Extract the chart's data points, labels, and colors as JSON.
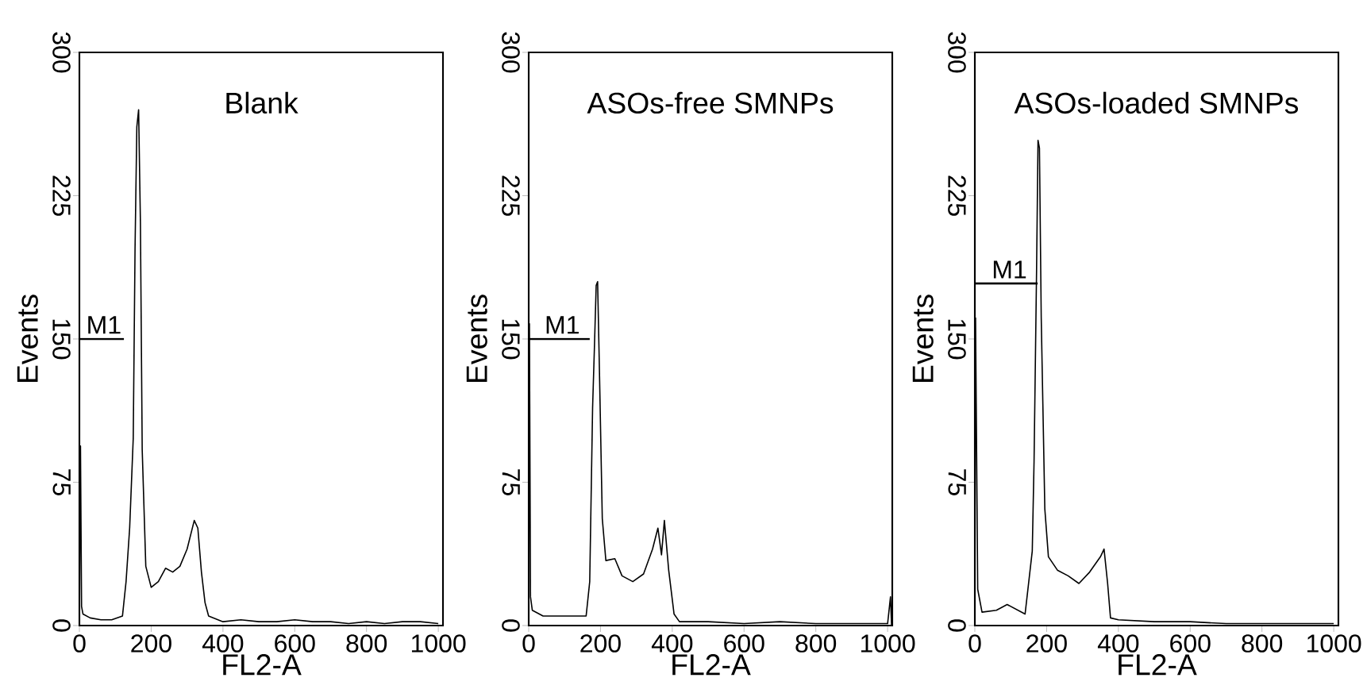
{
  "chart_data": [
    {
      "type": "line",
      "title": "Blank",
      "xlabel": "FL2-A",
      "ylabel": "Events",
      "xlim": [
        0,
        1013
      ],
      "ylim": [
        0,
        300
      ],
      "xticks": [
        0,
        200,
        400,
        600,
        800,
        1000
      ],
      "yticks": [
        0,
        75,
        150,
        225,
        300
      ],
      "series": [
        {
          "color": "#000000",
          "x": [
            0,
            3,
            6,
            10,
            30,
            60,
            90,
            120,
            130,
            140,
            150,
            155,
            160,
            165,
            170,
            175,
            185,
            200,
            220,
            240,
            260,
            280,
            300,
            320,
            330,
            340,
            350,
            360,
            400,
            450,
            500,
            550,
            600,
            650,
            700,
            750,
            800,
            850,
            900,
            950,
            1000
          ],
          "values": [
            0,
            94,
            10,
            6,
            4,
            3,
            3,
            5,
            23,
            51,
            98,
            197,
            261,
            270,
            211,
            92,
            31,
            20,
            23,
            30,
            28,
            31,
            40,
            55,
            51,
            28,
            12,
            5,
            2,
            3,
            2,
            2,
            3,
            2,
            2,
            1,
            2,
            1,
            2,
            2,
            1
          ]
        },
        {
          "name": "M1",
          "color": "#000000",
          "x": [
            0,
            124
          ],
          "values": [
            150,
            150
          ]
        }
      ]
    },
    {
      "type": "line",
      "title": "ASOs-free SMNPs",
      "xlabel": "FL2-A",
      "ylabel": "Events",
      "xlim": [
        0,
        1013
      ],
      "ylim": [
        0,
        300
      ],
      "xticks": [
        0,
        200,
        400,
        600,
        800,
        1000
      ],
      "yticks": [
        0,
        75,
        150,
        225,
        300
      ],
      "series": [
        {
          "color": "#000000",
          "x": [
            0,
            2,
            5,
            10,
            40,
            80,
            120,
            160,
            170,
            178,
            183,
            188,
            192,
            197,
            205,
            215,
            240,
            260,
            290,
            320,
            345,
            360,
            370,
            378,
            390,
            405,
            420,
            500,
            600,
            700,
            800,
            900,
            1000,
            1008,
            1011
          ],
          "values": [
            0,
            158,
            15,
            8,
            5,
            5,
            5,
            5,
            23,
            114,
            145,
            178,
            180,
            134,
            56,
            34,
            35,
            26,
            23,
            27,
            40,
            51,
            37,
            55,
            29,
            6,
            2,
            2,
            1,
            2,
            1,
            1,
            1,
            15,
            0
          ]
        },
        {
          "name": "M1",
          "color": "#000000",
          "x": [
            0,
            170
          ],
          "values": [
            150,
            150
          ]
        }
      ]
    },
    {
      "type": "line",
      "title": "ASOs-loaded SMNPs",
      "xlabel": "FL2-A",
      "ylabel": "Events",
      "xlim": [
        0,
        1013
      ],
      "ylim": [
        0,
        300
      ],
      "xticks": [
        0,
        200,
        400,
        600,
        800,
        1000
      ],
      "yticks": [
        0,
        75,
        150,
        225,
        300
      ],
      "series": [
        {
          "color": "#000000",
          "x": [
            0,
            2,
            8,
            20,
            60,
            90,
            140,
            160,
            165,
            172,
            176,
            180,
            185,
            195,
            205,
            230,
            260,
            290,
            320,
            350,
            360,
            370,
            378,
            400,
            500,
            600,
            700,
            800,
            900,
            1000
          ],
          "values": [
            0,
            161,
            19,
            7,
            8,
            11,
            6,
            39,
            86,
            186,
            254,
            250,
            161,
            61,
            36,
            29,
            26,
            22,
            28,
            36,
            40,
            22,
            4,
            3,
            2,
            2,
            1,
            1,
            1,
            1
          ]
        },
        {
          "name": "M1",
          "color": "#000000",
          "x": [
            0,
            175
          ],
          "values": [
            179,
            179
          ]
        }
      ]
    }
  ]
}
